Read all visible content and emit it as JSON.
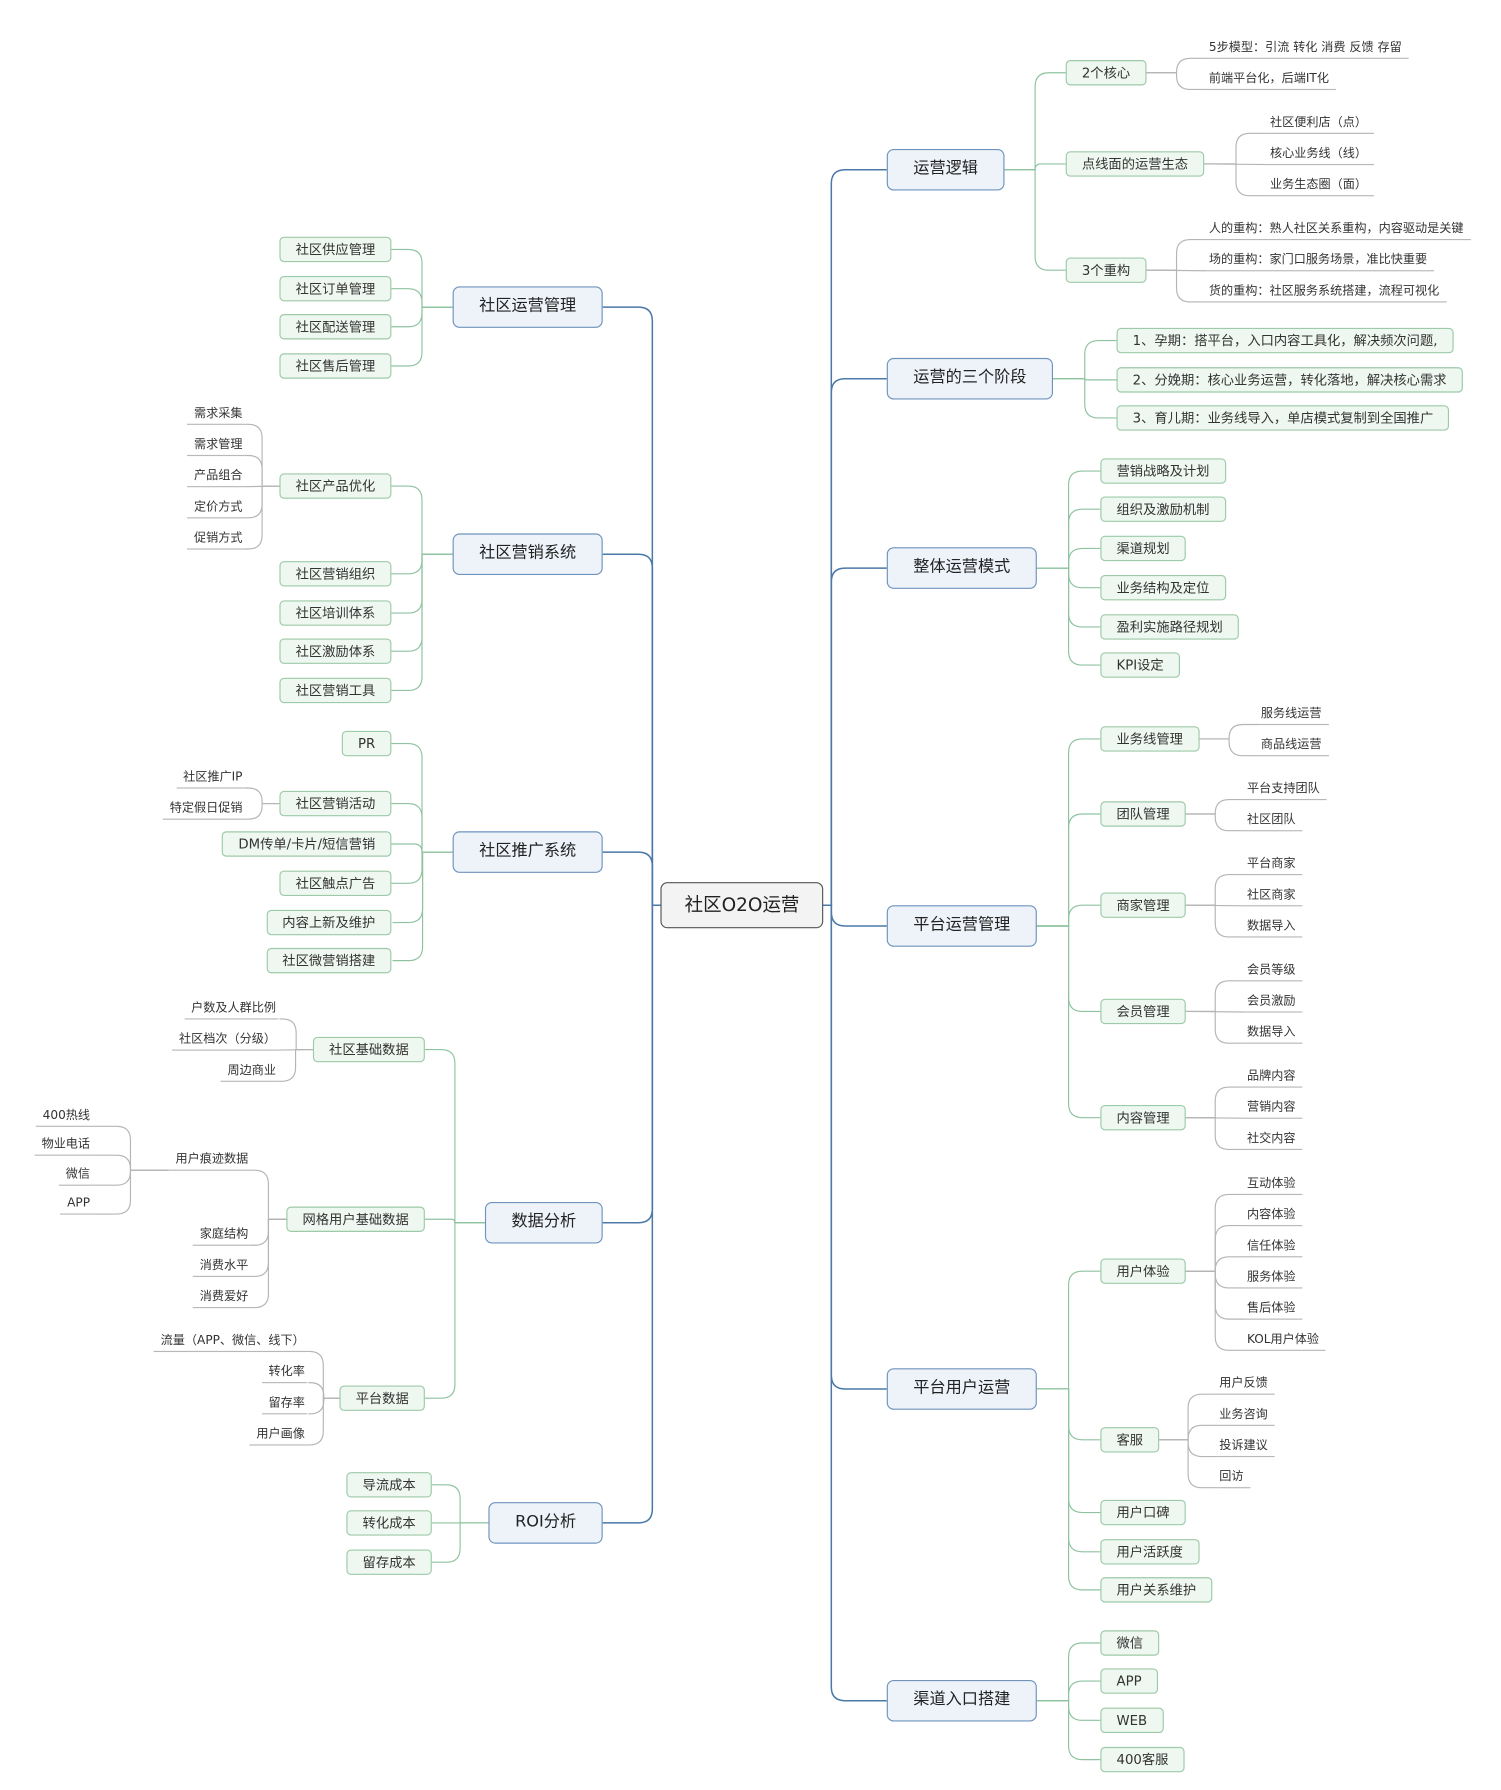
{
  "root": {
    "label": "社区O2O运营"
  },
  "colors": {
    "main_line": "#4a78a8",
    "sub_line": "#8fc3a0",
    "leaf_line": "#b5b5b5",
    "main_fill": "#eef3fa",
    "sub_fill": "#eef7f0"
  },
  "branches": [
    {
      "label": "运营逻辑",
      "children": [
        {
          "label": "2个核心",
          "children": [
            {
              "label": "5步模型：引流 转化 消费 反馈 存留"
            },
            {
              "label": "前端平台化，后端IT化"
            }
          ]
        },
        {
          "label": "点线面的运营生态",
          "children": [
            {
              "label": "社区便利店（点）"
            },
            {
              "label": "核心业务线（线）"
            },
            {
              "label": "业务生态圈（面）"
            }
          ]
        },
        {
          "label": "3个重构",
          "children": [
            {
              "label": "人的重构：熟人社区关系重构，内容驱动是关键"
            },
            {
              "label": "场的重构：家门口服务场景，准比快重要"
            },
            {
              "label": "货的重构：社区服务系统搭建，流程可视化"
            }
          ]
        }
      ]
    },
    {
      "label": "运营的三个阶段",
      "children": [
        {
          "label": "1、孕期：搭平台，入口内容工具化，解决频次问题,"
        },
        {
          "label": "2、分娩期：核心业务运营，转化落地，解决核心需求"
        },
        {
          "label": "3、育儿期：业务线导入，单店模式复制到全国推广"
        }
      ]
    },
    {
      "label": "整体运营模式",
      "children": [
        {
          "label": "营销战略及计划"
        },
        {
          "label": "组织及激励机制"
        },
        {
          "label": "渠道规划"
        },
        {
          "label": "业务结构及定位"
        },
        {
          "label": "盈利实施路径规划"
        },
        {
          "label": "KPI设定"
        }
      ]
    },
    {
      "label": "平台运营管理",
      "children": [
        {
          "label": "业务线管理",
          "children": [
            {
              "label": "服务线运营"
            },
            {
              "label": "商品线运营"
            }
          ]
        },
        {
          "label": "团队管理",
          "children": [
            {
              "label": "平台支持团队"
            },
            {
              "label": "社区团队"
            }
          ]
        },
        {
          "label": "商家管理",
          "children": [
            {
              "label": "平台商家"
            },
            {
              "label": "社区商家"
            },
            {
              "label": "数据导入"
            }
          ]
        },
        {
          "label": "会员管理",
          "children": [
            {
              "label": "会员等级"
            },
            {
              "label": "会员激励"
            },
            {
              "label": "数据导入"
            }
          ]
        },
        {
          "label": "内容管理",
          "children": [
            {
              "label": "品牌内容"
            },
            {
              "label": "营销内容"
            },
            {
              "label": "社交内容"
            }
          ]
        }
      ]
    },
    {
      "label": "平台用户运营",
      "children": [
        {
          "label": "用户体验",
          "children": [
            {
              "label": "互动体验"
            },
            {
              "label": "内容体验"
            },
            {
              "label": "信任体验"
            },
            {
              "label": "服务体验"
            },
            {
              "label": "售后体验"
            },
            {
              "label": "KOL用户体验"
            }
          ]
        },
        {
          "label": "客服",
          "children": [
            {
              "label": "用户反馈"
            },
            {
              "label": "业务咨询"
            },
            {
              "label": "投诉建议"
            },
            {
              "label": "回访"
            }
          ]
        },
        {
          "label": "用户口碑"
        },
        {
          "label": "用户活跃度"
        },
        {
          "label": "用户关系维护"
        }
      ]
    },
    {
      "label": "渠道入口搭建",
      "children": [
        {
          "label": "微信"
        },
        {
          "label": "APP"
        },
        {
          "label": "WEB"
        },
        {
          "label": "400客服"
        }
      ]
    },
    {
      "label": "社区运营管理",
      "children": [
        {
          "label": "社区供应管理"
        },
        {
          "label": "社区订单管理"
        },
        {
          "label": "社区配送管理"
        },
        {
          "label": "社区售后管理"
        }
      ]
    },
    {
      "label": "社区营销系统",
      "children": [
        {
          "label": "社区产品优化",
          "children": [
            {
              "label": "需求采集"
            },
            {
              "label": "需求管理"
            },
            {
              "label": "产品组合"
            },
            {
              "label": "定价方式"
            },
            {
              "label": "促销方式"
            }
          ]
        },
        {
          "label": "社区营销组织"
        },
        {
          "label": "社区培训体系"
        },
        {
          "label": "社区激励体系"
        },
        {
          "label": "社区营销工具"
        }
      ]
    },
    {
      "label": "社区推广系统",
      "children": [
        {
          "label": "PR"
        },
        {
          "label": "社区营销活动",
          "children": [
            {
              "label": "社区推广IP"
            },
            {
              "label": "特定假日促销"
            }
          ]
        },
        {
          "label": "DM传单/卡片/短信营销"
        },
        {
          "label": "社区触点广告"
        },
        {
          "label": "内容上新及维护"
        },
        {
          "label": "社区微营销搭建"
        }
      ]
    },
    {
      "label": "数据分析",
      "children": [
        {
          "label": "社区基础数据",
          "children": [
            {
              "label": "户数及人群比例"
            },
            {
              "label": "社区档次（分级）"
            },
            {
              "label": "周边商业"
            }
          ]
        },
        {
          "label": "网格用户基础数据",
          "children": [
            {
              "label": "用户痕迹数据",
              "children": [
                {
                  "label": "400热线"
                },
                {
                  "label": "物业电话"
                },
                {
                  "label": "微信"
                },
                {
                  "label": "APP"
                }
              ]
            },
            {
              "label": "家庭结构"
            },
            {
              "label": "消费水平"
            },
            {
              "label": "消费爱好"
            }
          ]
        },
        {
          "label": "平台数据",
          "children": [
            {
              "label": "流量（APP、微信、线下）"
            },
            {
              "label": "转化率"
            },
            {
              "label": "留存率"
            },
            {
              "label": "用户画像"
            }
          ]
        }
      ]
    },
    {
      "label": "ROI分析",
      "children": [
        {
          "label": "导流成本"
        },
        {
          "label": "转化成本"
        },
        {
          "label": "留存成本"
        }
      ]
    }
  ]
}
